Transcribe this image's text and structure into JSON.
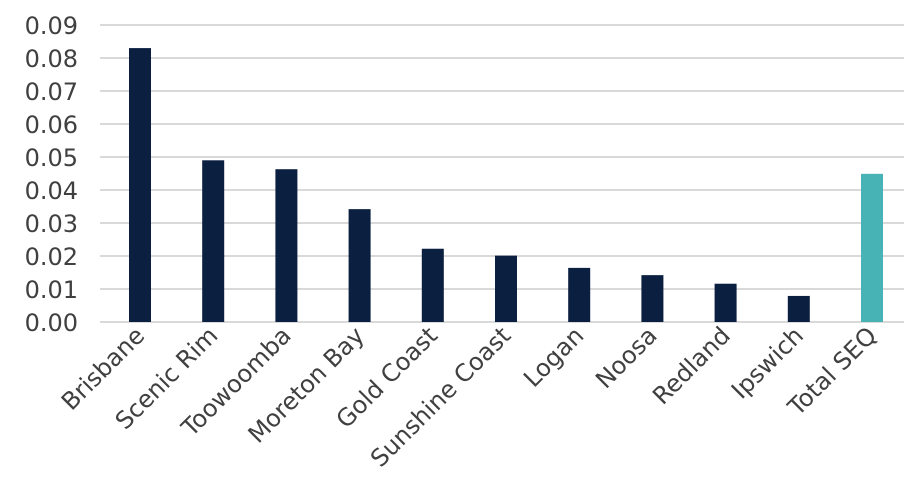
{
  "chart_data": {
    "type": "bar",
    "title": "",
    "xlabel": "",
    "ylabel": "",
    "ylim": [
      0,
      0.09
    ],
    "yticks": [
      "0.00",
      "0.01",
      "0.02",
      "0.03",
      "0.04",
      "0.05",
      "0.06",
      "0.07",
      "0.08",
      "0.09"
    ],
    "grid": true,
    "categories": [
      "Brisbane",
      "Scenic Rim",
      "Toowoomba",
      "Moreton Bay",
      "Gold Coast",
      "Sunshine Coast",
      "Logan",
      "Noosa",
      "Redland",
      "Ipswich",
      "Total SEQ"
    ],
    "values": [
      0.083,
      0.049,
      0.0463,
      0.0342,
      0.0222,
      0.0201,
      0.0164,
      0.0142,
      0.0116,
      0.0079,
      0.0449
    ],
    "colors": {
      "default": "#0b1f40",
      "highlight": "#48b3b5",
      "highlight_category": "Total SEQ"
    }
  }
}
